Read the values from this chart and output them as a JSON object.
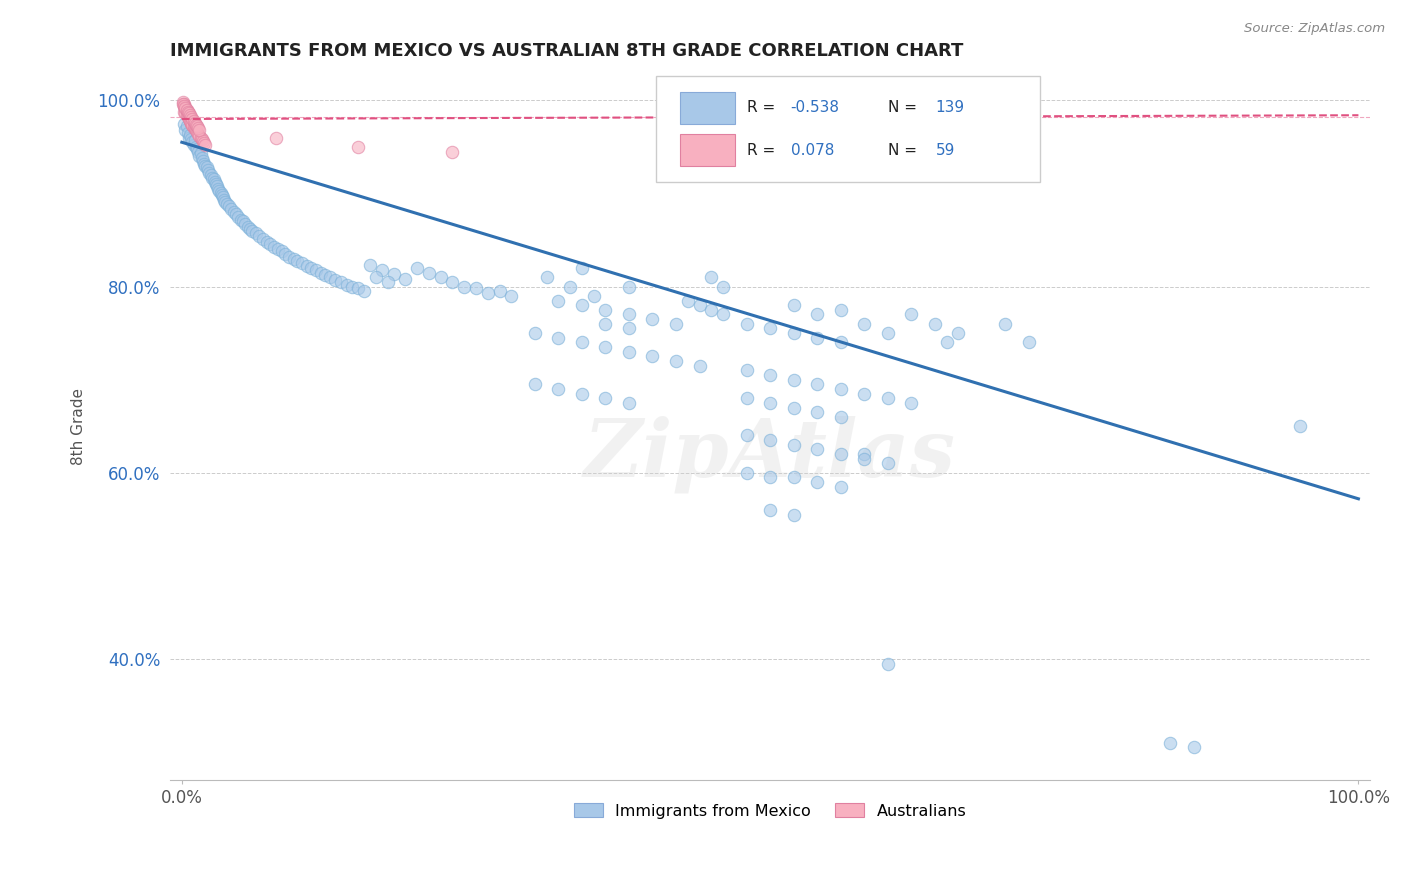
{
  "title": "IMMIGRANTS FROM MEXICO VS AUSTRALIAN 8TH GRADE CORRELATION CHART",
  "source_text": "Source: ZipAtlas.com",
  "ylabel": "8th Grade",
  "legend_labels": [
    "Immigrants from Mexico",
    "Australians"
  ],
  "blue_color": "#a8c8e8",
  "pink_color": "#f8b0c0",
  "blue_line_color": "#3070b0",
  "pink_line_color": "#e05080",
  "blue_scatter": [
    [
      0.002,
      0.975
    ],
    [
      0.003,
      0.968
    ],
    [
      0.004,
      0.972
    ],
    [
      0.005,
      0.965
    ],
    [
      0.006,
      0.96
    ],
    [
      0.007,
      0.963
    ],
    [
      0.008,
      0.958
    ],
    [
      0.009,
      0.955
    ],
    [
      0.01,
      0.952
    ],
    [
      0.011,
      0.957
    ],
    [
      0.012,
      0.95
    ],
    [
      0.013,
      0.948
    ],
    [
      0.014,
      0.945
    ],
    [
      0.015,
      0.94
    ],
    [
      0.016,
      0.943
    ],
    [
      0.017,
      0.938
    ],
    [
      0.018,
      0.935
    ],
    [
      0.019,
      0.932
    ],
    [
      0.02,
      0.93
    ],
    [
      0.021,
      0.928
    ],
    [
      0.022,
      0.925
    ],
    [
      0.023,
      0.922
    ],
    [
      0.025,
      0.92
    ],
    [
      0.026,
      0.917
    ],
    [
      0.027,
      0.915
    ],
    [
      0.028,
      0.912
    ],
    [
      0.029,
      0.91
    ],
    [
      0.03,
      0.908
    ],
    [
      0.031,
      0.905
    ],
    [
      0.032,
      0.903
    ],
    [
      0.033,
      0.9
    ],
    [
      0.034,
      0.898
    ],
    [
      0.035,
      0.896
    ],
    [
      0.036,
      0.893
    ],
    [
      0.037,
      0.891
    ],
    [
      0.038,
      0.889
    ],
    [
      0.04,
      0.886
    ],
    [
      0.042,
      0.883
    ],
    [
      0.044,
      0.88
    ],
    [
      0.046,
      0.878
    ],
    [
      0.048,
      0.875
    ],
    [
      0.05,
      0.872
    ],
    [
      0.052,
      0.87
    ],
    [
      0.054,
      0.867
    ],
    [
      0.056,
      0.864
    ],
    [
      0.058,
      0.862
    ],
    [
      0.06,
      0.86
    ],
    [
      0.063,
      0.857
    ],
    [
      0.066,
      0.854
    ],
    [
      0.069,
      0.851
    ],
    [
      0.072,
      0.848
    ],
    [
      0.075,
      0.846
    ],
    [
      0.078,
      0.843
    ],
    [
      0.082,
      0.84
    ],
    [
      0.085,
      0.838
    ],
    [
      0.088,
      0.835
    ],
    [
      0.091,
      0.832
    ],
    [
      0.095,
      0.83
    ],
    [
      0.098,
      0.827
    ],
    [
      0.102,
      0.825
    ],
    [
      0.106,
      0.822
    ],
    [
      0.11,
      0.82
    ],
    [
      0.114,
      0.818
    ],
    [
      0.118,
      0.815
    ],
    [
      0.122,
      0.812
    ],
    [
      0.126,
      0.81
    ],
    [
      0.13,
      0.807
    ],
    [
      0.135,
      0.805
    ],
    [
      0.14,
      0.802
    ],
    [
      0.145,
      0.8
    ],
    [
      0.15,
      0.798
    ],
    [
      0.16,
      0.823
    ],
    [
      0.17,
      0.818
    ],
    [
      0.18,
      0.813
    ],
    [
      0.19,
      0.808
    ],
    [
      0.2,
      0.82
    ],
    [
      0.21,
      0.815
    ],
    [
      0.22,
      0.81
    ],
    [
      0.155,
      0.795
    ],
    [
      0.165,
      0.81
    ],
    [
      0.175,
      0.805
    ],
    [
      0.23,
      0.805
    ],
    [
      0.24,
      0.8
    ],
    [
      0.25,
      0.798
    ],
    [
      0.26,
      0.793
    ],
    [
      0.27,
      0.795
    ],
    [
      0.28,
      0.79
    ],
    [
      0.31,
      0.81
    ],
    [
      0.33,
      0.8
    ],
    [
      0.35,
      0.79
    ],
    [
      0.32,
      0.785
    ],
    [
      0.34,
      0.78
    ],
    [
      0.36,
      0.775
    ],
    [
      0.38,
      0.77
    ],
    [
      0.4,
      0.765
    ],
    [
      0.42,
      0.76
    ],
    [
      0.34,
      0.82
    ],
    [
      0.38,
      0.8
    ],
    [
      0.45,
      0.81
    ],
    [
      0.46,
      0.8
    ],
    [
      0.43,
      0.785
    ],
    [
      0.44,
      0.78
    ],
    [
      0.45,
      0.775
    ],
    [
      0.46,
      0.77
    ],
    [
      0.48,
      0.76
    ],
    [
      0.5,
      0.755
    ],
    [
      0.52,
      0.75
    ],
    [
      0.54,
      0.745
    ],
    [
      0.56,
      0.74
    ],
    [
      0.52,
      0.78
    ],
    [
      0.54,
      0.77
    ],
    [
      0.56,
      0.775
    ],
    [
      0.58,
      0.76
    ],
    [
      0.6,
      0.75
    ],
    [
      0.62,
      0.77
    ],
    [
      0.64,
      0.76
    ],
    [
      0.65,
      0.74
    ],
    [
      0.66,
      0.75
    ],
    [
      0.58,
      0.62
    ],
    [
      0.6,
      0.61
    ],
    [
      0.7,
      0.76
    ],
    [
      0.72,
      0.74
    ],
    [
      0.95,
      0.65
    ],
    [
      0.3,
      0.75
    ],
    [
      0.32,
      0.745
    ],
    [
      0.34,
      0.74
    ],
    [
      0.36,
      0.735
    ],
    [
      0.38,
      0.73
    ],
    [
      0.4,
      0.725
    ],
    [
      0.42,
      0.72
    ],
    [
      0.44,
      0.715
    ],
    [
      0.36,
      0.76
    ],
    [
      0.38,
      0.755
    ],
    [
      0.48,
      0.71
    ],
    [
      0.5,
      0.705
    ],
    [
      0.52,
      0.7
    ],
    [
      0.54,
      0.695
    ],
    [
      0.56,
      0.69
    ],
    [
      0.58,
      0.685
    ],
    [
      0.6,
      0.68
    ],
    [
      0.62,
      0.675
    ],
    [
      0.48,
      0.68
    ],
    [
      0.5,
      0.675
    ],
    [
      0.52,
      0.67
    ],
    [
      0.54,
      0.665
    ],
    [
      0.56,
      0.66
    ],
    [
      0.3,
      0.695
    ],
    [
      0.32,
      0.69
    ],
    [
      0.34,
      0.685
    ],
    [
      0.36,
      0.68
    ],
    [
      0.38,
      0.675
    ],
    [
      0.48,
      0.64
    ],
    [
      0.5,
      0.635
    ],
    [
      0.52,
      0.63
    ],
    [
      0.54,
      0.625
    ],
    [
      0.56,
      0.62
    ],
    [
      0.58,
      0.615
    ],
    [
      0.48,
      0.6
    ],
    [
      0.5,
      0.595
    ],
    [
      0.52,
      0.595
    ],
    [
      0.54,
      0.59
    ],
    [
      0.56,
      0.585
    ],
    [
      0.5,
      0.56
    ],
    [
      0.52,
      0.555
    ],
    [
      0.6,
      0.395
    ],
    [
      0.84,
      0.31
    ],
    [
      0.86,
      0.305
    ]
  ],
  "pink_scatter": [
    [
      0.001,
      0.998
    ],
    [
      0.002,
      0.996
    ],
    [
      0.002,
      0.994
    ],
    [
      0.003,
      0.993
    ],
    [
      0.003,
      0.991
    ],
    [
      0.004,
      0.99
    ],
    [
      0.004,
      0.988
    ],
    [
      0.005,
      0.987
    ],
    [
      0.005,
      0.985
    ],
    [
      0.006,
      0.984
    ],
    [
      0.006,
      0.982
    ],
    [
      0.007,
      0.981
    ],
    [
      0.007,
      0.979
    ],
    [
      0.008,
      0.978
    ],
    [
      0.008,
      0.976
    ],
    [
      0.009,
      0.975
    ],
    [
      0.009,
      0.973
    ],
    [
      0.01,
      0.972
    ],
    [
      0.01,
      0.97
    ],
    [
      0.002,
      0.988
    ],
    [
      0.003,
      0.986
    ],
    [
      0.004,
      0.984
    ],
    [
      0.005,
      0.982
    ],
    [
      0.006,
      0.98
    ],
    [
      0.007,
      0.978
    ],
    [
      0.008,
      0.976
    ],
    [
      0.009,
      0.974
    ],
    [
      0.01,
      0.972
    ],
    [
      0.011,
      0.97
    ],
    [
      0.012,
      0.968
    ],
    [
      0.013,
      0.966
    ],
    [
      0.014,
      0.964
    ],
    [
      0.015,
      0.962
    ],
    [
      0.016,
      0.96
    ],
    [
      0.017,
      0.958
    ],
    [
      0.018,
      0.956
    ],
    [
      0.019,
      0.954
    ],
    [
      0.02,
      0.952
    ],
    [
      0.001,
      0.996
    ],
    [
      0.002,
      0.994
    ],
    [
      0.003,
      0.992
    ],
    [
      0.004,
      0.99
    ],
    [
      0.005,
      0.988
    ],
    [
      0.006,
      0.986
    ],
    [
      0.007,
      0.984
    ],
    [
      0.008,
      0.982
    ],
    [
      0.009,
      0.98
    ],
    [
      0.01,
      0.978
    ],
    [
      0.011,
      0.976
    ],
    [
      0.012,
      0.974
    ],
    [
      0.013,
      0.972
    ],
    [
      0.014,
      0.97
    ],
    [
      0.015,
      0.968
    ],
    [
      0.08,
      0.96
    ],
    [
      0.15,
      0.95
    ],
    [
      0.23,
      0.945
    ]
  ],
  "blue_trendline_x": [
    0.0,
    1.0
  ],
  "blue_trendline_y": [
    0.955,
    0.572
  ],
  "pink_trendline_x": [
    0.0,
    1.0
  ],
  "pink_trendline_y": [
    0.98,
    0.984
  ],
  "pink_hline_y": 0.982,
  "watermark": "ZipAtlas",
  "xlim": [
    -0.01,
    1.01
  ],
  "ylim": [
    0.27,
    1.03
  ],
  "y_ticks": [
    0.4,
    0.6,
    0.8,
    1.0
  ],
  "y_tick_labels": [
    "40.0%",
    "60.0%",
    "80.0%",
    "100.0%"
  ],
  "x_ticks": [
    0.0,
    1.0
  ],
  "x_tick_labels": [
    "0.0%",
    "100.0%"
  ],
  "fig_width": 14.06,
  "fig_height": 8.92,
  "dpi": 100
}
